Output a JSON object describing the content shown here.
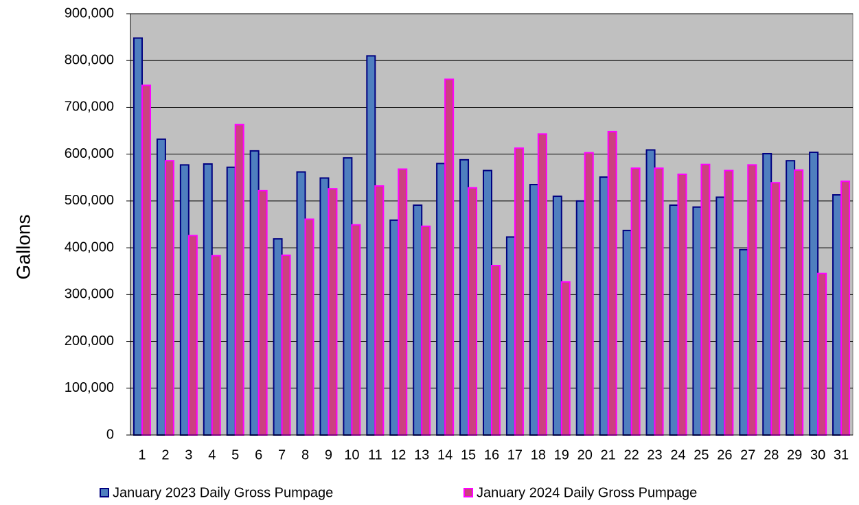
{
  "chart_data": {
    "type": "bar",
    "y_label": "Gallons",
    "categories": [
      "1",
      "2",
      "3",
      "4",
      "5",
      "6",
      "7",
      "8",
      "9",
      "10",
      "11",
      "12",
      "13",
      "14",
      "15",
      "16",
      "17",
      "18",
      "19",
      "20",
      "21",
      "22",
      "23",
      "24",
      "25",
      "26",
      "27",
      "28",
      "29",
      "30",
      "31"
    ],
    "series": [
      {
        "name": "January 2023 Daily Gross Pumpage",
        "color": "#4f7fbf",
        "edge_color": "#000080",
        "values": [
          848000,
          632000,
          577000,
          579000,
          572000,
          607000,
          419000,
          562000,
          549000,
          592000,
          810000,
          459000,
          491000,
          580000,
          588000,
          565000,
          423000,
          535000,
          510000,
          500000,
          551000,
          437000,
          609000,
          491000,
          487000,
          508000,
          396000,
          601000,
          586000,
          604000,
          513000
        ]
      },
      {
        "name": "January 2024 Daily Gross Pumpage",
        "color": "#cc4080",
        "edge_color": "#ff00ff",
        "values": [
          747000,
          586000,
          426000,
          383000,
          663000,
          522000,
          384000,
          461000,
          526000,
          449000,
          532000,
          568000,
          446000,
          760000,
          528000,
          362000,
          613000,
          643000,
          327000,
          603000,
          648000,
          570000,
          570000,
          557000,
          578000,
          565000,
          577000,
          539000,
          566000,
          345000,
          542000
        ]
      }
    ],
    "ylim": [
      0,
      900000
    ],
    "yticks": [
      0,
      {
        "value": 100000,
        "label": "100,000"
      },
      {
        "value": 200000,
        "label": "200,000"
      },
      {
        "value": 300000,
        "label": "300,000"
      },
      {
        "value": 400000,
        "label": "400,000"
      },
      {
        "value": 500000,
        "label": "500,000"
      },
      {
        "value": 600000,
        "label": "600,000"
      },
      {
        "value": 700000,
        "label": "700,000"
      },
      {
        "value": 800000,
        "label": "800,000"
      },
      {
        "value": 900000,
        "label": "900,000"
      }
    ],
    "grid": true,
    "plot_background": "#c0c0c0",
    "legend": "bottom"
  }
}
